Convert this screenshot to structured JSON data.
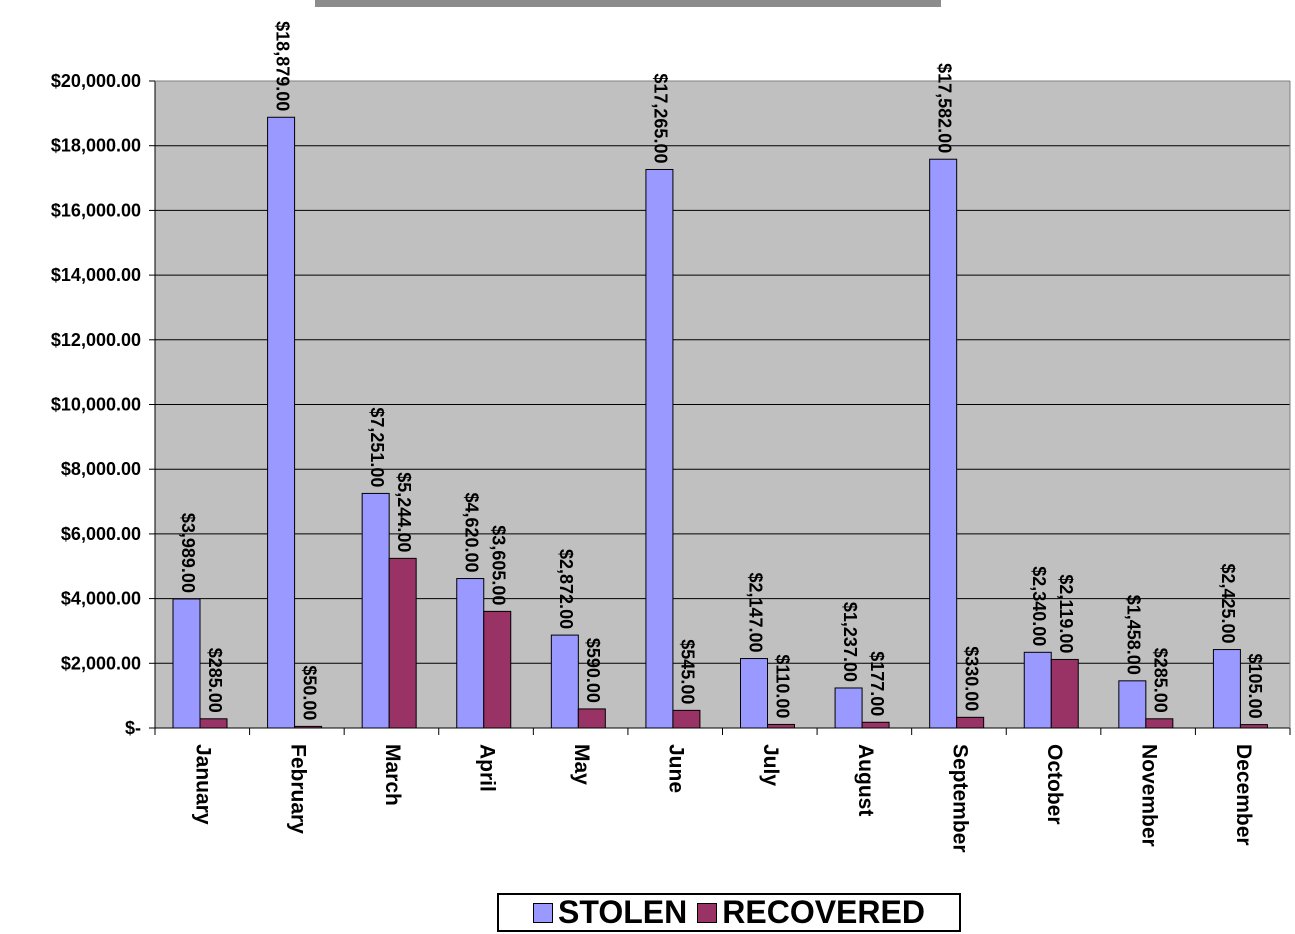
{
  "chart_data": {
    "type": "bar",
    "categories": [
      "January",
      "February",
      "March",
      "April",
      "May",
      "June",
      "July",
      "August",
      "September",
      "October",
      "November",
      "December"
    ],
    "series": [
      {
        "name": "STOLEN",
        "color": "#9999ff",
        "values": [
          3989,
          18879,
          7251,
          4620,
          2872,
          17265,
          2147,
          1237,
          17582,
          2340,
          1458,
          2425
        ],
        "labels": [
          "$3,989.00",
          "$18,879.00",
          "$7,251.00",
          "$4,620.00",
          "$2,872.00",
          "$17,265.00",
          "$2,147.00",
          "$1,237.00",
          "$17,582.00",
          "$2,340.00",
          "$1,458.00",
          "$2,425.00"
        ]
      },
      {
        "name": "RECOVERED",
        "color": "#993366",
        "values": [
          285,
          50,
          5244,
          3605,
          590,
          545,
          110,
          177,
          330,
          2119,
          285,
          105
        ],
        "labels": [
          "$285.00",
          "$50.00",
          "$5,244.00",
          "$3,605.00",
          "$590.00",
          "$545.00",
          "$110.00",
          "$177.00",
          "$330.00",
          "$2,119.00",
          "$285.00",
          "$105.00"
        ]
      }
    ],
    "yticks": [
      0,
      2000,
      4000,
      6000,
      8000,
      10000,
      12000,
      14000,
      16000,
      18000,
      20000
    ],
    "ytick_labels": [
      "$-",
      "$2,000.00",
      "$4,000.00",
      "$6,000.00",
      "$8,000.00",
      "$10,000.00",
      "$12,000.00",
      "$14,000.00",
      "$16,000.00",
      "$18,000.00",
      "$20,000.00"
    ],
    "ylim": [
      0,
      20000
    ],
    "grid": true,
    "plot_background": "#c0c0c0",
    "legend_position": "bottom"
  },
  "legend": {
    "stolen_label": "STOLEN",
    "recovered_label": "RECOVERED"
  }
}
